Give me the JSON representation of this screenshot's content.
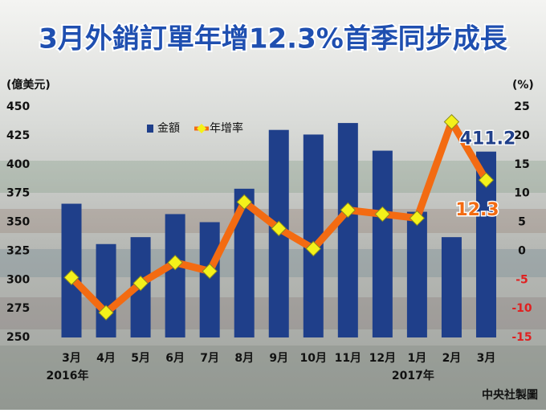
{
  "chart_data": {
    "type": "bar-line",
    "title": "3月外銷訂單年增12.3%首季同步成長",
    "y_label": "(億美元)",
    "y2_label": "(%)",
    "source": "中央社製圖",
    "categories": [
      "3月",
      "4月",
      "5月",
      "6月",
      "7月",
      "8月",
      "9月",
      "10月",
      "11月",
      "12月",
      "1月",
      "2月",
      "3月"
    ],
    "year_labels": [
      "2016年",
      null,
      null,
      null,
      null,
      null,
      null,
      null,
      null,
      null,
      "2017年",
      null,
      null
    ],
    "series": [
      {
        "name": "金額",
        "type": "bar",
        "color": "#1f3f8a",
        "values": [
          366,
          331,
          337,
          357,
          350,
          379,
          430,
          426,
          436,
          412,
          359,
          337,
          411.2
        ]
      },
      {
        "name": "年增率",
        "type": "line",
        "axis": "y2",
        "color": "#f36b12",
        "marker_color": "#f4f11a",
        "values": [
          -4.6,
          -10.7,
          -5.6,
          -2.0,
          -3.5,
          8.5,
          3.9,
          0.4,
          7.1,
          6.4,
          5.7,
          22.4,
          12.3
        ]
      }
    ],
    "ylim": [
      250,
      450
    ],
    "yticks": [
      250,
      275,
      300,
      325,
      350,
      375,
      400,
      425,
      450
    ],
    "y2lim": [
      -15,
      25
    ],
    "y2ticks": [
      -15,
      -10,
      -5,
      0,
      5,
      10,
      15,
      20,
      25
    ],
    "y2_negative_color": "#e02020",
    "labeled_points": [
      [
        0,
        12
      ],
      [
        1,
        12
      ]
    ]
  }
}
